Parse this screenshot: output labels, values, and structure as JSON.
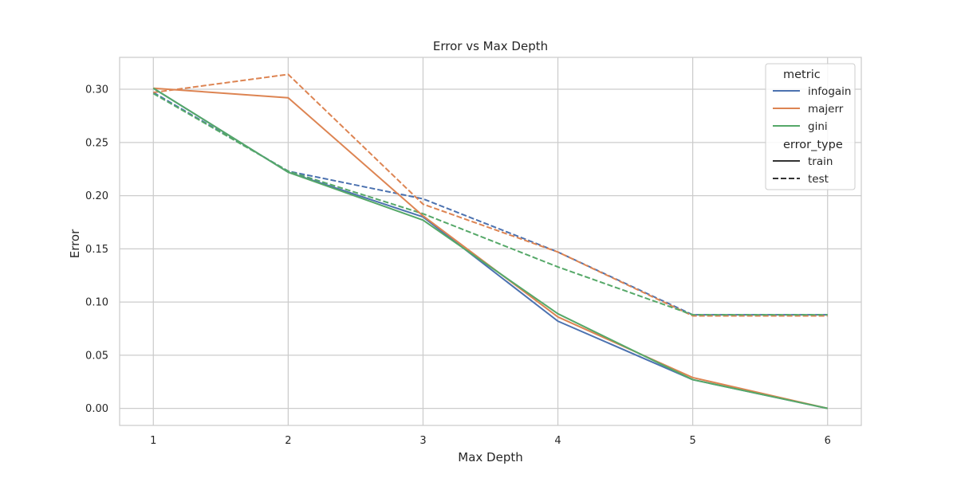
{
  "chart_data": {
    "type": "line",
    "title": "Error vs Max Depth",
    "xlabel": "Max Depth",
    "ylabel": "Error",
    "x": [
      1,
      2,
      3,
      4,
      5,
      6
    ],
    "xlim": [
      0.75,
      6.25
    ],
    "ylim": [
      -0.016,
      0.33
    ],
    "yticks": [
      0.0,
      0.05,
      0.1,
      0.15,
      0.2,
      0.25,
      0.3
    ],
    "ytick_labels": [
      "0.00",
      "0.05",
      "0.10",
      "0.15",
      "0.20",
      "0.25",
      "0.30"
    ],
    "xtick_labels": [
      "1",
      "2",
      "3",
      "4",
      "5",
      "6"
    ],
    "grid": true,
    "legend_placement": "top-right",
    "legend": {
      "hue_title": "metric",
      "style_title": "error_type",
      "metrics": [
        {
          "name": "infogain",
          "color": "#4c72b0"
        },
        {
          "name": "majerr",
          "color": "#dd8452"
        },
        {
          "name": "gini",
          "color": "#55a868"
        }
      ],
      "styles": [
        {
          "name": "train",
          "dashed": false
        },
        {
          "name": "test",
          "dashed": true
        }
      ]
    },
    "series": [
      {
        "metric": "infogain",
        "error_type": "test",
        "color": "#4c72b0",
        "dashed": true,
        "values": [
          0.297,
          0.223,
          0.197,
          0.147,
          0.088,
          0.088
        ]
      },
      {
        "metric": "majerr",
        "error_type": "test",
        "color": "#dd8452",
        "dashed": true,
        "values": [
          0.297,
          0.314,
          0.192,
          0.147,
          0.087,
          0.087
        ]
      },
      {
        "metric": "gini",
        "error_type": "test",
        "color": "#55a868",
        "dashed": true,
        "values": [
          0.296,
          0.223,
          0.183,
          0.133,
          0.088,
          0.088
        ]
      },
      {
        "metric": "infogain",
        "error_type": "train",
        "color": "#4c72b0",
        "dashed": false,
        "values": [
          0.301,
          0.222,
          0.18,
          0.082,
          0.027,
          0.0
        ]
      },
      {
        "metric": "majerr",
        "error_type": "train",
        "color": "#dd8452",
        "dashed": false,
        "values": [
          0.301,
          0.292,
          0.181,
          0.086,
          0.029,
          0.0
        ]
      },
      {
        "metric": "gini",
        "error_type": "train",
        "color": "#55a868",
        "dashed": false,
        "values": [
          0.301,
          0.222,
          0.177,
          0.089,
          0.027,
          0.0
        ]
      }
    ]
  }
}
